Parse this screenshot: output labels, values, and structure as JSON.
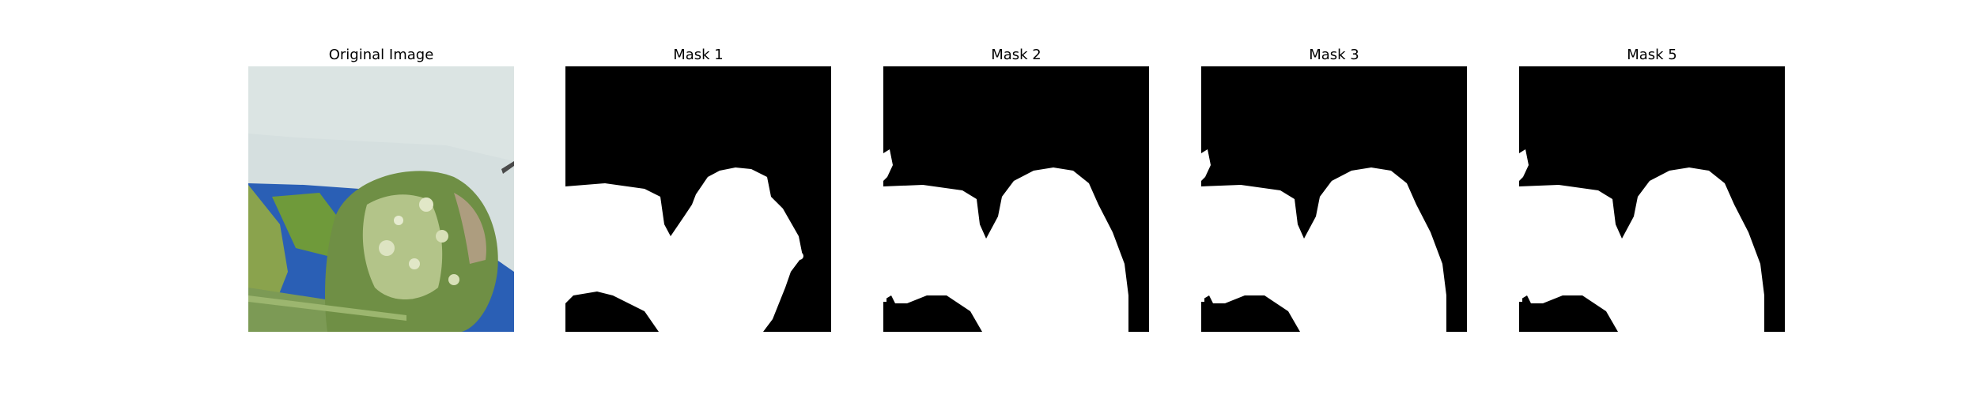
{
  "panels": [
    {
      "title": "Original Image",
      "kind": "photo"
    },
    {
      "title": "Mask 1",
      "kind": "mask"
    },
    {
      "title": "Mask 2",
      "kind": "mask"
    },
    {
      "title": "Mask 3",
      "kind": "mask"
    },
    {
      "title": "Mask 5",
      "kind": "mask"
    }
  ],
  "colors": {
    "background": "#ffffff",
    "mask_background": "#000000",
    "mask_foreground": "#ffffff",
    "sky_white": "#d9e2e1",
    "blue_backdrop": "#2a5fb5",
    "leaf_green": "#6f8f45",
    "leaf_light": "#c9d6a0"
  }
}
